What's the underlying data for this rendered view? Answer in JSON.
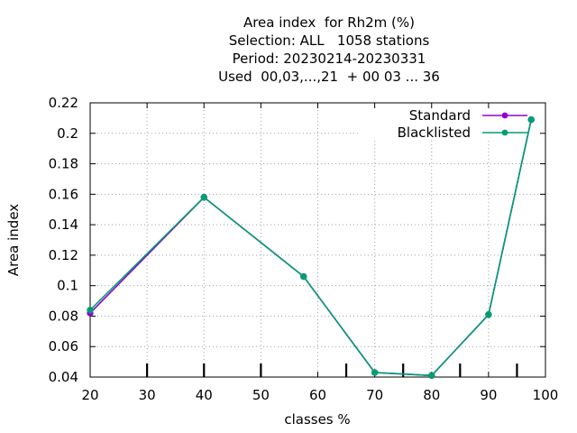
{
  "chart_data": {
    "type": "line",
    "title_lines": [
      "Area index  for Rh2m (%)",
      "Selection: ALL   1058 stations",
      "Period: 20230214-20230331",
      "Used  00,03,...,21  + 00 03 ... 36"
    ],
    "xlabel": "classes %",
    "ylabel": "Area index",
    "xlim": [
      20,
      100
    ],
    "ylim": [
      0.04,
      0.22
    ],
    "x_ticks": [
      20,
      30,
      40,
      50,
      60,
      70,
      80,
      90,
      100
    ],
    "x_tick_labels": [
      "20",
      "30",
      "40",
      "50",
      "60",
      "70",
      "80",
      "90",
      "100"
    ],
    "y_ticks": [
      0.04,
      0.06,
      0.08,
      0.1,
      0.12,
      0.14,
      0.16,
      0.18,
      0.2,
      0.22
    ],
    "y_tick_labels": [
      "0.04",
      "0.06",
      "0.08",
      "0.1",
      "0.12",
      "0.14",
      "0.16",
      "0.18",
      "0.2",
      "0.22"
    ],
    "class_boundaries": [
      30,
      40,
      50,
      65,
      75,
      85,
      95
    ],
    "grid": true,
    "legend_position": "top-right",
    "series": [
      {
        "name": "Standard",
        "color": "#9400d3",
        "x": [
          20,
          40,
          57.5,
          70,
          80,
          90,
          97.5
        ],
        "y": [
          0.082,
          0.158,
          0.106,
          0.043,
          0.041,
          0.081,
          0.209
        ]
      },
      {
        "name": "Blacklisted",
        "color": "#009e73",
        "x": [
          20,
          40,
          57.5,
          70,
          80,
          90,
          97.5
        ],
        "y": [
          0.084,
          0.158,
          0.106,
          0.043,
          0.041,
          0.081,
          0.209
        ]
      }
    ]
  }
}
